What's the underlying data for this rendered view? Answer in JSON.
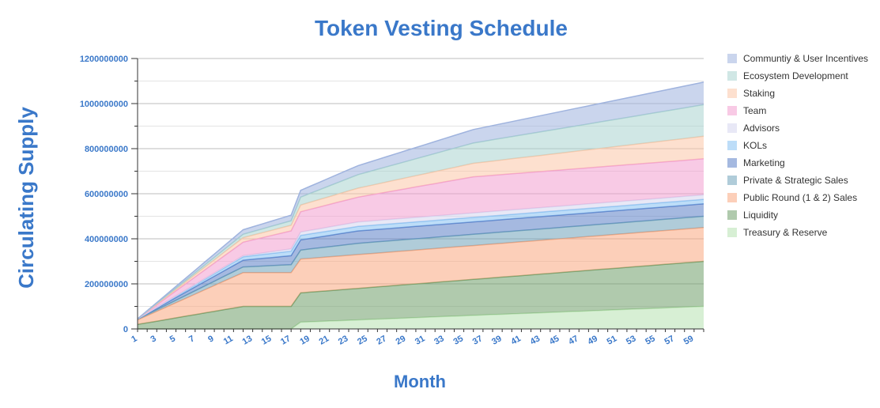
{
  "chart_data": {
    "type": "area",
    "stacked": true,
    "title": "Token Vesting Schedule",
    "xlabel": "Month",
    "ylabel": "Circulating Supply",
    "ylim": [
      0,
      1200000000
    ],
    "xlim": [
      1,
      60
    ],
    "yticks": [
      0,
      200000000,
      400000000,
      600000000,
      800000000,
      1000000000,
      1200000000
    ],
    "ytick_labels": [
      "0",
      "200000000",
      "400000000",
      "600000000",
      "800000000",
      "1000000000",
      "1200000000"
    ],
    "xtick_labels": [
      "1",
      "3",
      "5",
      "7",
      "9",
      "11",
      "13",
      "15",
      "17",
      "19",
      "21",
      "23",
      "25",
      "27",
      "29",
      "31",
      "33",
      "35",
      "37",
      "39",
      "41",
      "43",
      "45",
      "47",
      "49",
      "51",
      "53",
      "55",
      "57",
      "59"
    ],
    "grid": true,
    "legend_position": "right",
    "series": [
      {
        "name": "Treasury & Reserve",
        "color": "#b7e1b0",
        "x": [
          1,
          17,
          18,
          60
        ],
        "y": [
          0,
          0,
          30000000,
          100000000
        ]
      },
      {
        "name": "Liquidity",
        "color": "#6f9f6a",
        "x": [
          1,
          12,
          17,
          18,
          60
        ],
        "y": [
          20000000,
          100000000,
          100000000,
          130000000,
          200000000
        ]
      },
      {
        "name": "Public Round (1 & 2) Sales",
        "color": "#f9a77f",
        "x": [
          1,
          12,
          17,
          18,
          24,
          60
        ],
        "y": [
          20000000,
          150000000,
          150000000,
          150000000,
          150000000,
          150000000
        ]
      },
      {
        "name": "Private & Strategic Sales",
        "color": "#6fa3b9",
        "x": [
          1,
          12,
          17,
          18,
          24,
          60
        ],
        "y": [
          3000000,
          25000000,
          35000000,
          40000000,
          50000000,
          50000000
        ]
      },
      {
        "name": "Marketing",
        "color": "#5b7fc7",
        "x": [
          1,
          12,
          17,
          18,
          24,
          60
        ],
        "y": [
          1000000,
          30000000,
          40000000,
          45000000,
          55000000,
          55000000
        ]
      },
      {
        "name": "KOLs",
        "color": "#87c1f2",
        "x": [
          1,
          12,
          17,
          18,
          24,
          60
        ],
        "y": [
          1000000,
          15000000,
          20000000,
          20000000,
          20000000,
          20000000
        ]
      },
      {
        "name": "Advisors",
        "color": "#d6d5ef",
        "x": [
          1,
          12,
          17,
          18,
          24,
          60
        ],
        "y": [
          0,
          5000000,
          10000000,
          15000000,
          20000000,
          20000000
        ]
      },
      {
        "name": "Team",
        "color": "#f29ed0",
        "x": [
          1,
          12,
          17,
          18,
          24,
          36,
          60
        ],
        "y": [
          0,
          60000000,
          80000000,
          90000000,
          110000000,
          160000000,
          160000000
        ]
      },
      {
        "name": "Staking",
        "color": "#fbc7a8",
        "x": [
          1,
          12,
          17,
          18,
          24,
          36,
          60
        ],
        "y": [
          0,
          20000000,
          25000000,
          30000000,
          40000000,
          60000000,
          100000000
        ]
      },
      {
        "name": "Ecosystem Development",
        "color": "#a9d3cf",
        "x": [
          1,
          12,
          17,
          18,
          24,
          36,
          60
        ],
        "y": [
          0,
          15000000,
          20000000,
          35000000,
          60000000,
          90000000,
          140000000
        ]
      },
      {
        "name": "Communtiy & User Incentives",
        "color": "#9fb3de",
        "x": [
          1,
          12,
          17,
          18,
          24,
          36,
          60
        ],
        "y": [
          0,
          20000000,
          25000000,
          30000000,
          40000000,
          60000000,
          100000000
        ]
      }
    ],
    "legend_order": [
      "Communtiy & User Incentives",
      "Ecosystem Development",
      "Staking",
      "Team",
      "Advisors",
      "KOLs",
      "Marketing",
      "Private & Strategic Sales",
      "Public Round (1 & 2) Sales",
      "Liquidity",
      "Treasury & Reserve"
    ]
  }
}
